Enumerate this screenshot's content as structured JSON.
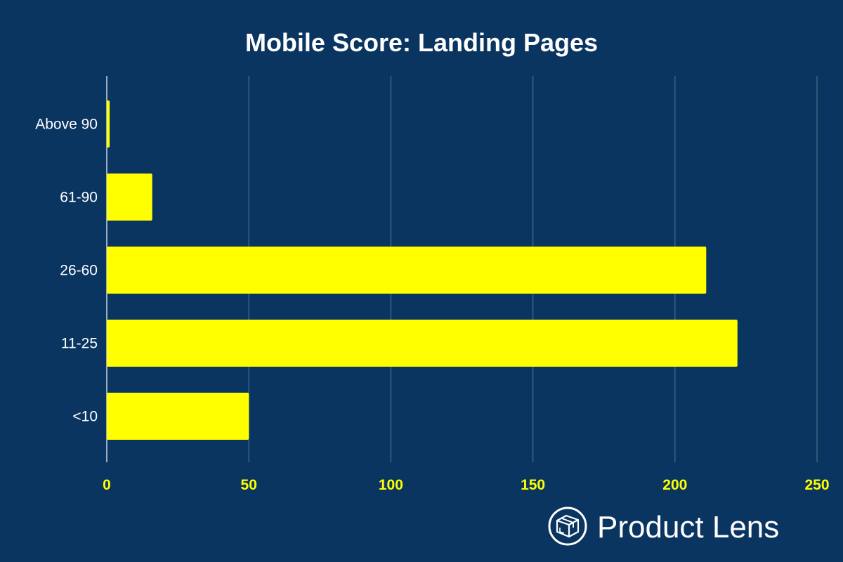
{
  "chart_data": {
    "type": "bar",
    "orientation": "horizontal",
    "title": "Mobile Score: Landing Pages",
    "categories": [
      "Above 90",
      "61-90",
      "26-60",
      "11-25",
      "<10"
    ],
    "values": [
      1,
      16,
      211,
      222,
      50
    ],
    "xlim": [
      0,
      250
    ],
    "xticks": [
      0,
      50,
      100,
      150,
      200,
      250
    ],
    "grid": true,
    "colors": {
      "bar": "#ffff00",
      "background": "#0a3561",
      "tick_text": "#ffff00",
      "label_text": "#ffffff"
    }
  },
  "brand": {
    "name": "Product Lens",
    "icon": "package-box-icon"
  }
}
